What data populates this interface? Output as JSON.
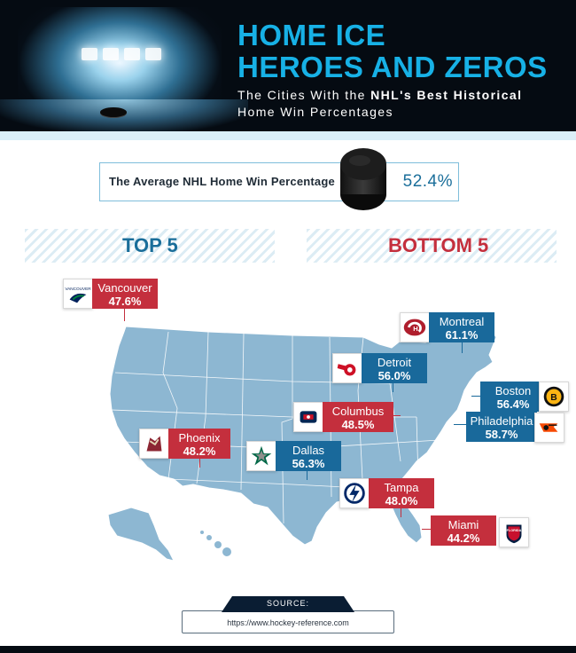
{
  "header": {
    "title_line1": "HOME ICE",
    "title_line2": "HEROES AND ZEROS",
    "subtitle_line1_pre": "The Cities With the ",
    "subtitle_line1_bold": "NHL's Best Historical",
    "subtitle_line2": "Home Win Percentages"
  },
  "average": {
    "label": "The Average NHL Home Win Percentage",
    "value": "52.4%"
  },
  "sections": {
    "top_label": "TOP 5",
    "bottom_label": "BOTTOM 5"
  },
  "cities": [
    {
      "name": "Vancouver",
      "pct": "47.6%",
      "group": "top",
      "logo": "canucks-icon"
    },
    {
      "name": "Montreal",
      "pct": "61.1%",
      "group": "bottom",
      "logo": "canadiens-icon"
    },
    {
      "name": "Detroit",
      "pct": "56.0%",
      "group": "bottom",
      "logo": "red-wings-icon"
    },
    {
      "name": "Boston",
      "pct": "56.4%",
      "group": "bottom",
      "logo": "bruins-icon"
    },
    {
      "name": "Columbus",
      "pct": "48.5%",
      "group": "top",
      "logo": "blue-jackets-icon"
    },
    {
      "name": "Philadelphia",
      "pct": "58.7%",
      "group": "bottom",
      "logo": "flyers-icon"
    },
    {
      "name": "Phoenix",
      "pct": "48.2%",
      "group": "top",
      "logo": "coyotes-icon"
    },
    {
      "name": "Dallas",
      "pct": "56.3%",
      "group": "bottom",
      "logo": "stars-icon"
    },
    {
      "name": "Tampa",
      "pct": "48.0%",
      "group": "top",
      "logo": "lightning-icon"
    },
    {
      "name": "Miami",
      "pct": "44.2%",
      "group": "top",
      "logo": "panthers-icon"
    }
  ],
  "colors": {
    "top": "#c42f3d",
    "bottom": "#19699b",
    "map_fill": "#8db7d2",
    "accent": "#17b1e6"
  },
  "source": {
    "label": "SOURCE:",
    "url": "https://www.hockey-reference.com"
  }
}
